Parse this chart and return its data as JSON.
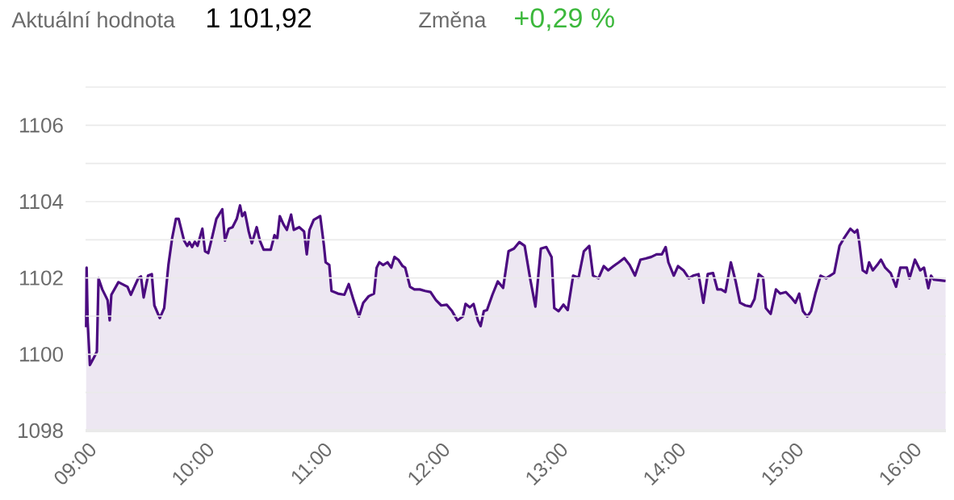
{
  "chart_data": {
    "type": "area",
    "annotations": [
      "Aktuální hodnota",
      "1 101,92",
      "Změna",
      "+0,29 %"
    ],
    "color": "#4b0b80",
    "grid": "y",
    "xlim": [
      9,
      16.3
    ],
    "ylim": [
      1098,
      1107
    ],
    "xticks": [
      {
        "value": 9,
        "label": "09:00"
      },
      {
        "value": 10,
        "label": "10:00"
      },
      {
        "value": 11,
        "label": "11:00"
      },
      {
        "value": 12,
        "label": "12:00"
      },
      {
        "value": 13,
        "label": "13:00"
      },
      {
        "value": 14,
        "label": "14:00"
      },
      {
        "value": 15,
        "label": "15:00"
      },
      {
        "value": 16,
        "label": "16:00"
      }
    ],
    "yticks": [
      1098,
      {
        "value": 1099,
        "label": null
      },
      1100,
      {
        "value": 1101,
        "label": null
      },
      1102,
      {
        "value": 1103,
        "label": null
      },
      1104,
      {
        "value": 1105,
        "label": null
      },
      1106,
      {
        "value": 1107,
        "label": null
      }
    ],
    "x": [
      9.005,
      9.009,
      9.018,
      9.037,
      9.073,
      9.096,
      9.11,
      9.142,
      9.187,
      9.205,
      9.219,
      9.279,
      9.356,
      9.384,
      9.447,
      9.47,
      9.493,
      9.53,
      9.562,
      9.584,
      9.63,
      9.667,
      9.703,
      9.735,
      9.767,
      9.79,
      9.836,
      9.863,
      9.881,
      9.904,
      9.927,
      9.95,
      9.991,
      10.014,
      10.041,
      10.078,
      10.11,
      10.16,
      10.183,
      10.215,
      10.247,
      10.283,
      10.311,
      10.329,
      10.352,
      10.384,
      10.411,
      10.452,
      10.479,
      10.511,
      10.571,
      10.603,
      10.626,
      10.648,
      10.68,
      10.708,
      10.744,
      10.767,
      10.813,
      10.854,
      10.877,
      10.9,
      10.936,
      10.991,
      11.023,
      11.037,
      11.068,
      11.087,
      11.142,
      11.196,
      11.233,
      11.274,
      11.32,
      11.356,
      11.402,
      11.447,
      11.47,
      11.493,
      11.525,
      11.562,
      11.594,
      11.621,
      11.653,
      11.69,
      11.712,
      11.753,
      11.79,
      11.836,
      11.881,
      11.927,
      11.973,
      12.018,
      12.064,
      12.11,
      12.155,
      12.201,
      12.224,
      12.26,
      12.292,
      12.329,
      12.352,
      12.379,
      12.406,
      12.452,
      12.498,
      12.543,
      12.589,
      12.635,
      12.68,
      12.726,
      12.772,
      12.817,
      12.863,
      12.909,
      12.954,
      12.977,
      13.014,
      13.055,
      13.091,
      13.137,
      13.183,
      13.228,
      13.274,
      13.306,
      13.352,
      13.397,
      13.434,
      13.479,
      13.525,
      13.571,
      13.616,
      13.662,
      13.708,
      13.753,
      13.799,
      13.845,
      13.89,
      13.922,
      13.945,
      13.991,
      14.027,
      14.073,
      14.119,
      14.155,
      14.201,
      14.242,
      14.279,
      14.324,
      14.361,
      14.393,
      14.429,
      14.475,
      14.516,
      14.553,
      14.598,
      14.644,
      14.676,
      14.712,
      14.749,
      14.772,
      14.813,
      14.858,
      14.895,
      14.941,
      14.986,
      15.023,
      15.055,
      15.087,
      15.123,
      15.155,
      15.192,
      15.237,
      15.283,
      15.352,
      15.397,
      15.443,
      15.489,
      15.525,
      15.548,
      15.566,
      15.594,
      15.626,
      15.648,
      15.68,
      15.717,
      15.749,
      15.785,
      15.831,
      15.877,
      15.913,
      15.968,
      15.991,
      16.037,
      16.082,
      16.114,
      16.151,
      16.174,
      16.196,
      16.297
    ],
    "values": [
      1100.71,
      1102.27,
      1100.85,
      1099.72,
      1099.93,
      1100.07,
      1101.99,
      1101.7,
      1101.42,
      1100.89,
      1101.56,
      1101.89,
      1101.77,
      1101.56,
      1101.99,
      1102.04,
      1101.49,
      1102.06,
      1102.1,
      1101.28,
      1100.95,
      1101.21,
      1102.34,
      1103.05,
      1103.55,
      1103.55,
      1102.98,
      1102.84,
      1102.94,
      1102.81,
      1102.95,
      1102.84,
      1103.29,
      1102.7,
      1102.65,
      1103.12,
      1103.55,
      1103.8,
      1102.98,
      1103.29,
      1103.33,
      1103.55,
      1103.9,
      1103.62,
      1103.72,
      1103.22,
      1102.91,
      1103.33,
      1102.98,
      1102.74,
      1102.74,
      1103.12,
      1103.02,
      1103.62,
      1103.4,
      1103.26,
      1103.66,
      1103.26,
      1103.33,
      1103.22,
      1102.62,
      1103.26,
      1103.52,
      1103.62,
      1102.84,
      1102.41,
      1102.34,
      1101.66,
      1101.59,
      1101.56,
      1101.84,
      1101.42,
      1100.99,
      1101.35,
      1101.52,
      1101.59,
      1102.27,
      1102.41,
      1102.34,
      1102.41,
      1102.27,
      1102.55,
      1102.48,
      1102.31,
      1102.27,
      1101.77,
      1101.7,
      1101.7,
      1101.66,
      1101.63,
      1101.42,
      1101.28,
      1101.3,
      1101.13,
      1100.89,
      1100.99,
      1101.32,
      1101.23,
      1101.32,
      1100.89,
      1100.74,
      1101.13,
      1101.16,
      1101.56,
      1101.91,
      1101.74,
      1102.7,
      1102.77,
      1102.94,
      1102.84,
      1101.99,
      1101.25,
      1102.77,
      1102.81,
      1102.55,
      1101.21,
      1101.13,
      1101.3,
      1101.16,
      1102.06,
      1102.01,
      1102.7,
      1102.84,
      1102.06,
      1101.99,
      1102.31,
      1102.2,
      1102.31,
      1102.41,
      1102.52,
      1102.34,
      1102.06,
      1102.48,
      1102.51,
      1102.55,
      1102.62,
      1102.62,
      1102.81,
      1102.41,
      1102.06,
      1102.31,
      1102.2,
      1101.99,
      1102.06,
      1102.1,
      1101.35,
      1102.1,
      1102.13,
      1101.7,
      1101.7,
      1101.63,
      1102.41,
      1101.91,
      1101.35,
      1101.28,
      1101.25,
      1101.45,
      1102.1,
      1102.01,
      1101.21,
      1101.06,
      1101.7,
      1101.59,
      1101.63,
      1101.49,
      1101.35,
      1101.59,
      1101.13,
      1100.99,
      1101.13,
      1101.59,
      1102.06,
      1101.99,
      1102.13,
      1102.84,
      1103.08,
      1103.29,
      1103.19,
      1103.26,
      1102.91,
      1102.2,
      1102.13,
      1102.41,
      1102.2,
      1102.34,
      1102.48,
      1102.27,
      1102.13,
      1101.77,
      1102.27,
      1102.27,
      1101.99,
      1102.48,
      1102.2,
      1102.27,
      1101.73,
      1102.06,
      1101.96,
      1101.92
    ]
  }
}
